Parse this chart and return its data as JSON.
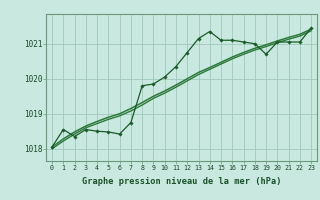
{
  "title": "Graphe pression niveau de la mer (hPa)",
  "bg_color": "#c8e8e0",
  "plot_bg_color": "#c8e8e0",
  "grid_color": "#a0c8bc",
  "line_color": "#1a5c28",
  "smooth_color": "#2d7a3a",
  "border_color": "#6a9a7a",
  "label_bg": "#2d6e3a",
  "label_fg": "#c8e8e0",
  "xlim": [
    -0.5,
    23.5
  ],
  "ylim": [
    1017.65,
    1021.85
  ],
  "yticks": [
    1018,
    1019,
    1020,
    1021
  ],
  "xticks": [
    0,
    1,
    2,
    3,
    4,
    5,
    6,
    7,
    8,
    9,
    10,
    11,
    12,
    13,
    14,
    15,
    16,
    17,
    18,
    19,
    20,
    21,
    22,
    23
  ],
  "main_x": [
    0,
    1,
    2,
    3,
    4,
    5,
    6,
    7,
    8,
    9,
    10,
    11,
    12,
    13,
    14,
    15,
    16,
    17,
    18,
    19,
    20,
    21,
    22,
    23
  ],
  "main_y": [
    1018.05,
    1018.55,
    1018.35,
    1018.55,
    1018.5,
    1018.48,
    1018.42,
    1018.75,
    1019.8,
    1019.85,
    1020.05,
    1020.35,
    1020.75,
    1021.15,
    1021.35,
    1021.1,
    1021.1,
    1021.05,
    1021.0,
    1020.7,
    1021.05,
    1021.05,
    1021.05,
    1021.45
  ],
  "smooth1_x": [
    0,
    1,
    2,
    3,
    4,
    5,
    6,
    7,
    8,
    9,
    10,
    11,
    12,
    13,
    14,
    15,
    16,
    17,
    18,
    19,
    20,
    21,
    22,
    23
  ],
  "smooth1_y": [
    1018.05,
    1018.28,
    1018.48,
    1018.65,
    1018.78,
    1018.9,
    1019.0,
    1019.15,
    1019.32,
    1019.5,
    1019.65,
    1019.82,
    1020.0,
    1020.18,
    1020.32,
    1020.47,
    1020.62,
    1020.75,
    1020.87,
    1020.97,
    1021.08,
    1021.18,
    1021.27,
    1021.42
  ],
  "smooth2_x": [
    0,
    1,
    2,
    3,
    4,
    5,
    6,
    7,
    8,
    9,
    10,
    11,
    12,
    13,
    14,
    15,
    16,
    17,
    18,
    19,
    20,
    21,
    22,
    23
  ],
  "smooth2_y": [
    1018.0,
    1018.22,
    1018.42,
    1018.6,
    1018.72,
    1018.84,
    1018.94,
    1019.08,
    1019.25,
    1019.44,
    1019.59,
    1019.76,
    1019.94,
    1020.12,
    1020.27,
    1020.42,
    1020.57,
    1020.7,
    1020.82,
    1020.92,
    1021.03,
    1021.13,
    1021.22,
    1021.37
  ]
}
